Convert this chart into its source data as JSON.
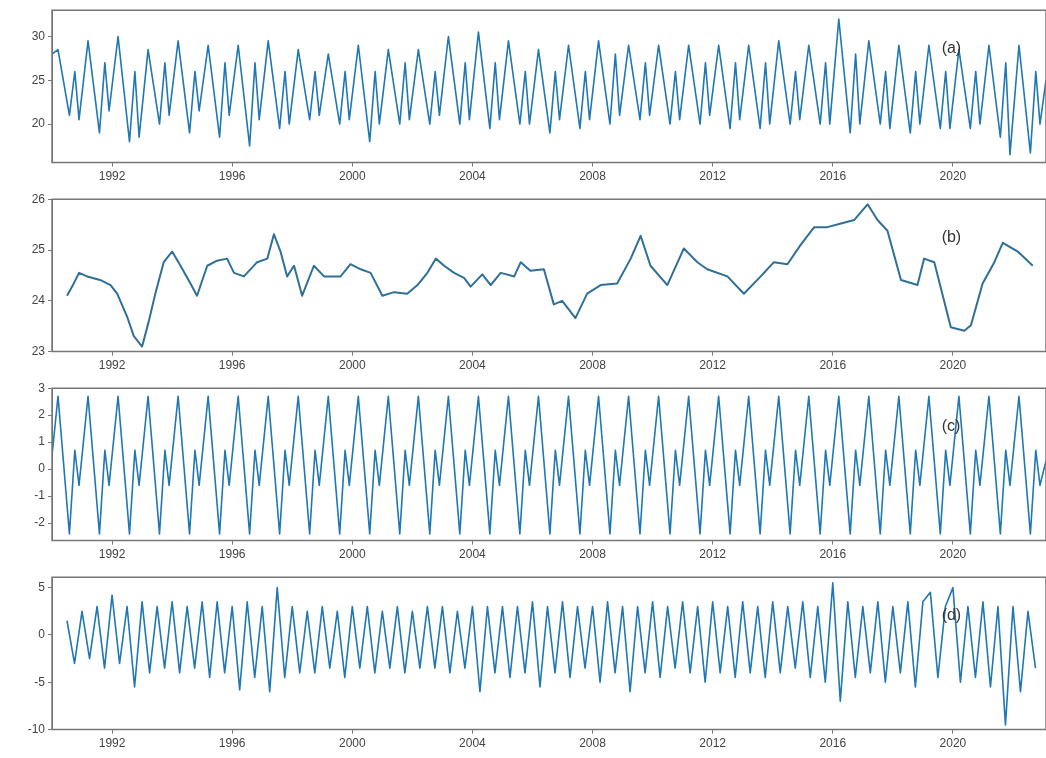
{
  "chart_data": [
    {
      "type": "line",
      "annotations": [
        "(a)"
      ],
      "xlim": [
        1990,
        2023.1
      ],
      "ylim": [
        15.6,
        33
      ],
      "xticks": [
        1992,
        1996,
        2000,
        2004,
        2008,
        2012,
        2016,
        2020
      ],
      "yticks": [
        20,
        25,
        30
      ],
      "grid": false,
      "legend": false,
      "series": [
        {
          "color": "#1f77b4",
          "x": [
            1990.0,
            1990.2,
            1990.58,
            1990.76,
            1990.9,
            1991.2,
            1991.58,
            1991.76,
            1991.9,
            1992.2,
            1992.58,
            1992.76,
            1992.9,
            1993.2,
            1993.58,
            1993.76,
            1993.9,
            1994.2,
            1994.58,
            1994.76,
            1994.9,
            1995.2,
            1995.58,
            1995.76,
            1995.9,
            1996.2,
            1996.58,
            1996.76,
            1996.9,
            1997.2,
            1997.58,
            1997.76,
            1997.9,
            1998.2,
            1998.58,
            1998.76,
            1998.9,
            1999.2,
            1999.58,
            1999.76,
            1999.9,
            2000.2,
            2000.58,
            2000.76,
            2000.9,
            2001.2,
            2001.58,
            2001.76,
            2001.9,
            2002.2,
            2002.58,
            2002.76,
            2002.9,
            2003.2,
            2003.58,
            2003.76,
            2003.9,
            2004.2,
            2004.58,
            2004.76,
            2004.9,
            2005.2,
            2005.58,
            2005.76,
            2005.9,
            2006.2,
            2006.58,
            2006.76,
            2006.9,
            2007.2,
            2007.58,
            2007.76,
            2007.9,
            2008.2,
            2008.58,
            2008.76,
            2008.9,
            2009.2,
            2009.58,
            2009.76,
            2009.9,
            2010.2,
            2010.58,
            2010.76,
            2010.9,
            2011.2,
            2011.58,
            2011.76,
            2011.9,
            2012.2,
            2012.58,
            2012.76,
            2012.9,
            2013.2,
            2013.58,
            2013.76,
            2013.9,
            2014.2,
            2014.58,
            2014.76,
            2014.9,
            2015.2,
            2015.58,
            2015.76,
            2015.9,
            2016.2,
            2016.58,
            2016.76,
            2016.9,
            2017.2,
            2017.58,
            2017.76,
            2017.9,
            2018.2,
            2018.58,
            2018.76,
            2018.9,
            2019.2,
            2019.58,
            2019.76,
            2019.9,
            2020.2,
            2020.58,
            2020.76,
            2020.9,
            2021.2,
            2021.58,
            2021.76,
            2021.9,
            2022.2,
            2022.58,
            2022.76,
            2022.9,
            2023.1
          ],
          "values": [
            28,
            28.5,
            21,
            26,
            20.5,
            29.5,
            19,
            27,
            21.5,
            30,
            18,
            26,
            18.5,
            28.5,
            20,
            27,
            21,
            29.5,
            19,
            26,
            21.5,
            29,
            18.5,
            27,
            21,
            29,
            17.5,
            27,
            20.5,
            29.5,
            19.5,
            26,
            20,
            28.5,
            20.5,
            26,
            21,
            28,
            20,
            26,
            20.5,
            29,
            18,
            26,
            20,
            28.5,
            20,
            27,
            20.5,
            28.5,
            20,
            26,
            21,
            30,
            20,
            27,
            20.5,
            30.5,
            19.5,
            27,
            20.5,
            29.5,
            20,
            26,
            20,
            28.5,
            19,
            26,
            20.5,
            29,
            19.5,
            26,
            20.5,
            29.5,
            20,
            28,
            21,
            29,
            20.5,
            27,
            21,
            29,
            20,
            26,
            20.5,
            29,
            20,
            27,
            21,
            29,
            19.5,
            27,
            20.5,
            29,
            19.5,
            27,
            20,
            29.5,
            20,
            26,
            20.5,
            29,
            20,
            27,
            20,
            32,
            19,
            28,
            20,
            29.5,
            20,
            26,
            19.5,
            29,
            19,
            26,
            20,
            29,
            19.5,
            26,
            19.5,
            28.5,
            19.5,
            26,
            20,
            29,
            18.5,
            27,
            16.5,
            29,
            16.7,
            26,
            20,
            25
          ]
        }
      ]
    },
    {
      "type": "line",
      "annotations": [
        "(b)"
      ],
      "xlim": [
        1990,
        2023.1
      ],
      "ylim": [
        23,
        26
      ],
      "xticks": [
        1992,
        1996,
        2000,
        2004,
        2008,
        2012,
        2016,
        2020
      ],
      "yticks": [
        23,
        24,
        25,
        26
      ],
      "grid": false,
      "legend": false,
      "series": [
        {
          "color": "#2f7099",
          "x": [
            1990.5,
            1990.67,
            1990.9,
            1991.17,
            1991.6,
            1991.95,
            1992.17,
            1992.5,
            1992.72,
            1993.0,
            1993.22,
            1993.44,
            1993.72,
            1994.0,
            1994.28,
            1994.61,
            1994.83,
            1995.17,
            1995.5,
            1995.83,
            1996.06,
            1996.39,
            1996.83,
            1997.17,
            1997.39,
            1997.61,
            1997.83,
            1998.06,
            1998.33,
            1998.72,
            1999.06,
            1999.61,
            1999.94,
            2000.28,
            2000.61,
            2001.0,
            2001.39,
            2001.83,
            2002.17,
            2002.5,
            2002.78,
            2003.06,
            2003.39,
            2003.72,
            2003.94,
            2004.33,
            2004.61,
            2004.94,
            2005.39,
            2005.61,
            2005.93,
            2006.38,
            2006.71,
            2006.99,
            2007.43,
            2007.82,
            2008.27,
            2008.82,
            2009.27,
            2009.6,
            2009.93,
            2010.49,
            2011.04,
            2011.49,
            2011.82,
            2012.49,
            2013.04,
            2013.6,
            2014.04,
            2014.49,
            2014.93,
            2015.38,
            2015.82,
            2016.27,
            2016.71,
            2017.16,
            2017.49,
            2017.82,
            2018.27,
            2018.82,
            2019.04,
            2019.38,
            2019.93,
            2020.38,
            2020.6,
            2020.99,
            2021.38,
            2021.66,
            2022.16,
            2022.66
          ],
          "values": [
            24.1,
            24.28,
            24.55,
            24.48,
            24.41,
            24.31,
            24.14,
            23.69,
            23.31,
            23.1,
            23.59,
            24.14,
            24.76,
            24.97,
            24.69,
            24.34,
            24.1,
            24.69,
            24.79,
            24.83,
            24.55,
            24.48,
            24.76,
            24.83,
            25.31,
            24.97,
            24.48,
            24.69,
            24.1,
            24.69,
            24.48,
            24.48,
            24.72,
            24.62,
            24.55,
            24.1,
            24.17,
            24.14,
            24.31,
            24.55,
            24.83,
            24.69,
            24.55,
            24.45,
            24.28,
            24.52,
            24.31,
            24.55,
            24.48,
            24.76,
            24.59,
            24.62,
            23.93,
            24.0,
            23.66,
            24.14,
            24.31,
            24.34,
            24.83,
            25.28,
            24.69,
            24.31,
            25.03,
            24.76,
            24.62,
            24.48,
            24.14,
            24.48,
            24.76,
            24.72,
            25.1,
            25.45,
            25.45,
            25.52,
            25.59,
            25.9,
            25.59,
            25.38,
            24.41,
            24.31,
            24.83,
            24.76,
            23.48,
            23.41,
            23.52,
            24.34,
            24.76,
            25.14,
            24.97,
            24.69
          ]
        }
      ]
    },
    {
      "type": "line",
      "annotations": [
        "(c)"
      ],
      "xlim": [
        1990,
        2023.1
      ],
      "ylim": [
        -2.65,
        3
      ],
      "xticks": [
        1992,
        1996,
        2000,
        2004,
        2008,
        2012,
        2016,
        2020
      ],
      "yticks": [
        -2,
        -1,
        0,
        1,
        2,
        3
      ],
      "grid": false,
      "legend": false,
      "series": [
        {
          "color": "#1f77b4",
          "x": [
            1990.0,
            1990.2,
            1990.58,
            1990.76,
            1990.9,
            1991.2,
            1991.58,
            1991.76,
            1991.9,
            1992.2,
            1992.58,
            1992.76,
            1992.9,
            1993.2,
            1993.58,
            1993.76,
            1993.9,
            1994.2,
            1994.58,
            1994.76,
            1994.9,
            1995.2,
            1995.58,
            1995.76,
            1995.9,
            1996.2,
            1996.58,
            1996.76,
            1996.9,
            1997.2,
            1997.58,
            1997.76,
            1997.9,
            1998.2,
            1998.58,
            1998.76,
            1998.9,
            1999.2,
            1999.58,
            1999.76,
            1999.9,
            2000.2,
            2000.58,
            2000.76,
            2000.9,
            2001.2,
            2001.58,
            2001.76,
            2001.9,
            2002.2,
            2002.58,
            2002.76,
            2002.9,
            2003.2,
            2003.58,
            2003.76,
            2003.9,
            2004.2,
            2004.58,
            2004.76,
            2004.9,
            2005.2,
            2005.58,
            2005.76,
            2005.9,
            2006.2,
            2006.58,
            2006.76,
            2006.9,
            2007.2,
            2007.58,
            2007.76,
            2007.9,
            2008.2,
            2008.58,
            2008.76,
            2008.9,
            2009.2,
            2009.58,
            2009.76,
            2009.9,
            2010.2,
            2010.58,
            2010.76,
            2010.9,
            2011.2,
            2011.58,
            2011.76,
            2011.9,
            2012.2,
            2012.58,
            2012.76,
            2012.9,
            2013.2,
            2013.58,
            2013.76,
            2013.9,
            2014.2,
            2014.58,
            2014.76,
            2014.9,
            2015.2,
            2015.58,
            2015.76,
            2015.9,
            2016.2,
            2016.58,
            2016.76,
            2016.9,
            2017.2,
            2017.58,
            2017.76,
            2017.9,
            2018.2,
            2018.58,
            2018.76,
            2018.9,
            2019.2,
            2019.58,
            2019.76,
            2019.9,
            2020.2,
            2020.58,
            2020.76,
            2020.9,
            2021.2,
            2021.58,
            2021.76,
            2021.9,
            2022.2,
            2022.58,
            2022.76,
            2022.9,
            2023.1
          ],
          "values": [
            0.5,
            2.7,
            -2.4,
            0.7,
            -0.6,
            2.7,
            -2.4,
            0.7,
            -0.6,
            2.7,
            -2.4,
            0.7,
            -0.6,
            2.7,
            -2.4,
            0.7,
            -0.6,
            2.7,
            -2.4,
            0.7,
            -0.6,
            2.7,
            -2.4,
            0.7,
            -0.6,
            2.7,
            -2.4,
            0.7,
            -0.6,
            2.7,
            -2.4,
            0.7,
            -0.6,
            2.7,
            -2.4,
            0.7,
            -0.6,
            2.7,
            -2.4,
            0.7,
            -0.6,
            2.7,
            -2.4,
            0.7,
            -0.6,
            2.7,
            -2.4,
            0.7,
            -0.6,
            2.7,
            -2.4,
            0.7,
            -0.6,
            2.7,
            -2.4,
            0.7,
            -0.6,
            2.7,
            -2.4,
            0.7,
            -0.6,
            2.7,
            -2.4,
            0.7,
            -0.6,
            2.7,
            -2.4,
            0.7,
            -0.6,
            2.7,
            -2.4,
            0.7,
            -0.6,
            2.7,
            -2.4,
            0.7,
            -0.6,
            2.7,
            -2.4,
            0.7,
            -0.6,
            2.7,
            -2.4,
            0.7,
            -0.6,
            2.7,
            -2.4,
            0.7,
            -0.6,
            2.7,
            -2.4,
            0.7,
            -0.6,
            2.7,
            -2.4,
            0.7,
            -0.6,
            2.7,
            -2.4,
            0.7,
            -0.6,
            2.7,
            -2.4,
            0.7,
            -0.6,
            2.7,
            -2.4,
            0.7,
            -0.6,
            2.7,
            -2.4,
            0.7,
            -0.6,
            2.7,
            -2.4,
            0.7,
            -0.6,
            2.7,
            -2.4,
            0.7,
            -0.6,
            2.7,
            -2.4,
            0.7,
            -0.6,
            2.7,
            -2.4,
            0.7,
            -0.6,
            2.7,
            -2.4,
            0.7,
            -0.6,
            0.3
          ]
        }
      ]
    },
    {
      "type": "line",
      "annotations": [
        "(d)"
      ],
      "xlim": [
        1990,
        2023.1
      ],
      "ylim": [
        -10,
        6.1
      ],
      "xticks": [
        1992,
        1996,
        2000,
        2004,
        2008,
        2012,
        2016,
        2020
      ],
      "yticks": [
        -10,
        -5,
        0,
        5
      ],
      "grid": false,
      "legend": false,
      "series": [
        {
          "color": "#1f77b4",
          "x": [
            1990.5,
            1990.75,
            1991.0,
            1991.25,
            1991.5,
            1991.75,
            1992.0,
            1992.25,
            1992.5,
            1992.75,
            1993.0,
            1993.25,
            1993.5,
            1993.75,
            1994.0,
            1994.25,
            1994.5,
            1994.75,
            1995.0,
            1995.25,
            1995.5,
            1995.75,
            1996.0,
            1996.25,
            1996.5,
            1996.75,
            1997.0,
            1997.25,
            1997.5,
            1997.75,
            1998.0,
            1998.25,
            1998.5,
            1998.75,
            1999.0,
            1999.25,
            1999.5,
            1999.75,
            2000.0,
            2000.25,
            2000.5,
            2000.75,
            2001.0,
            2001.25,
            2001.5,
            2001.75,
            2002.0,
            2002.25,
            2002.5,
            2002.75,
            2003.0,
            2003.25,
            2003.5,
            2003.75,
            2004.0,
            2004.25,
            2004.5,
            2004.75,
            2005.0,
            2005.25,
            2005.5,
            2005.75,
            2006.0,
            2006.25,
            2006.5,
            2006.75,
            2007.0,
            2007.25,
            2007.5,
            2007.75,
            2008.0,
            2008.25,
            2008.5,
            2008.75,
            2009.0,
            2009.25,
            2009.5,
            2009.75,
            2010.0,
            2010.25,
            2010.5,
            2010.75,
            2011.0,
            2011.25,
            2011.5,
            2011.75,
            2012.0,
            2012.25,
            2012.5,
            2012.75,
            2013.0,
            2013.25,
            2013.5,
            2013.75,
            2014.0,
            2014.25,
            2014.5,
            2014.75,
            2015.0,
            2015.25,
            2015.5,
            2015.75,
            2016.0,
            2016.25,
            2016.5,
            2016.75,
            2017.0,
            2017.25,
            2017.5,
            2017.75,
            2018.0,
            2018.25,
            2018.5,
            2018.75,
            2019.0,
            2019.25,
            2019.5,
            2019.75,
            2020.0,
            2020.25,
            2020.5,
            2020.75,
            2021.0,
            2021.25,
            2021.5,
            2021.75,
            2022.0,
            2022.25,
            2022.5,
            2022.75
          ],
          "values": [
            1.5,
            -3,
            2.5,
            -2.5,
            3,
            -3.5,
            4.2,
            -3,
            3,
            -5.5,
            3.5,
            -4,
            3,
            -3.5,
            3.5,
            -4,
            3,
            -3.5,
            3.5,
            -4.5,
            3.5,
            -4,
            3,
            -5.8,
            3.5,
            -4.5,
            3,
            -6,
            5,
            -4.5,
            3,
            -4,
            2.5,
            -4,
            3,
            -3.5,
            2.5,
            -4.5,
            3,
            -3.5,
            3,
            -4,
            2.5,
            -3.5,
            3,
            -4,
            2.5,
            -3.5,
            3,
            -3.5,
            3,
            -4,
            2.5,
            -3.5,
            3,
            -6,
            3,
            -4,
            3,
            -4.5,
            3,
            -4,
            3.5,
            -5.5,
            3,
            -4,
            3.5,
            -4.5,
            3,
            -3.5,
            3,
            -5,
            3.5,
            -4,
            3,
            -6,
            3,
            -4,
            3.5,
            -4.5,
            3,
            -3.5,
            3.5,
            -4,
            3,
            -5,
            3.5,
            -4,
            3,
            -4.5,
            3.5,
            -4,
            3,
            -4.5,
            3.5,
            -4,
            3,
            -3.5,
            3.5,
            -4.5,
            3,
            -5,
            5.5,
            -7,
            3.5,
            -4.5,
            3,
            -4,
            3.5,
            -5,
            3,
            -4,
            3.5,
            -5.5,
            3.5,
            4.5,
            -4.5,
            3,
            5,
            -5,
            3,
            -4.5,
            3.5,
            -5.5,
            3,
            -9.5,
            3,
            -6,
            2.5,
            -3.5
          ]
        }
      ]
    }
  ]
}
